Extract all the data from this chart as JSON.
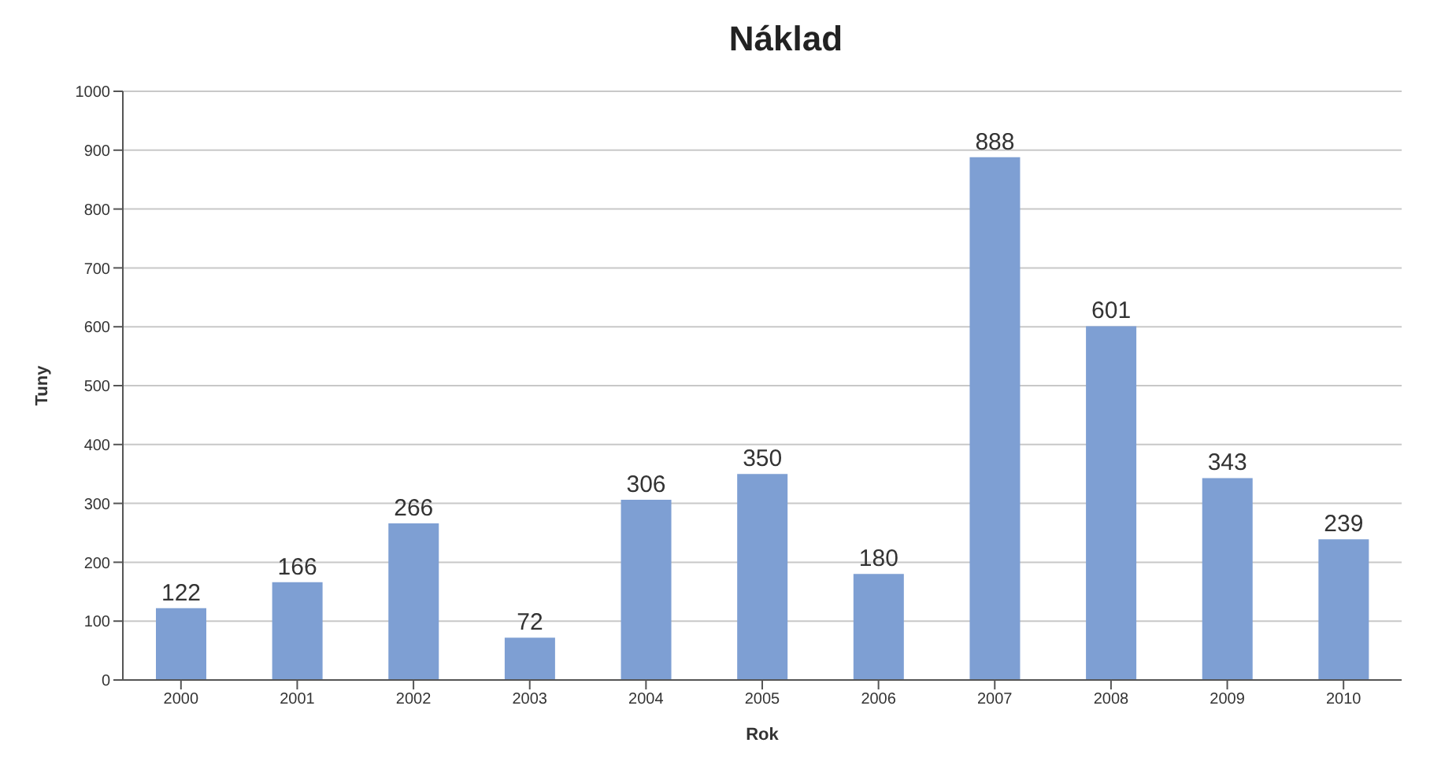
{
  "chart_data": {
    "type": "bar",
    "title": "Náklad",
    "xlabel": "Rok",
    "ylabel": "Tuny",
    "categories": [
      "2000",
      "2001",
      "2002",
      "2003",
      "2004",
      "2005",
      "2006",
      "2007",
      "2008",
      "2009",
      "2010"
    ],
    "values": [
      122,
      166,
      266,
      72,
      306,
      350,
      180,
      888,
      601,
      343,
      239
    ],
    "color": "#7e9fd3",
    "ylim": [
      0,
      1000
    ],
    "yticks": [
      0,
      100,
      200,
      300,
      400,
      500,
      600,
      700,
      800,
      900,
      1000
    ],
    "grid": "y",
    "data_labels": true
  }
}
